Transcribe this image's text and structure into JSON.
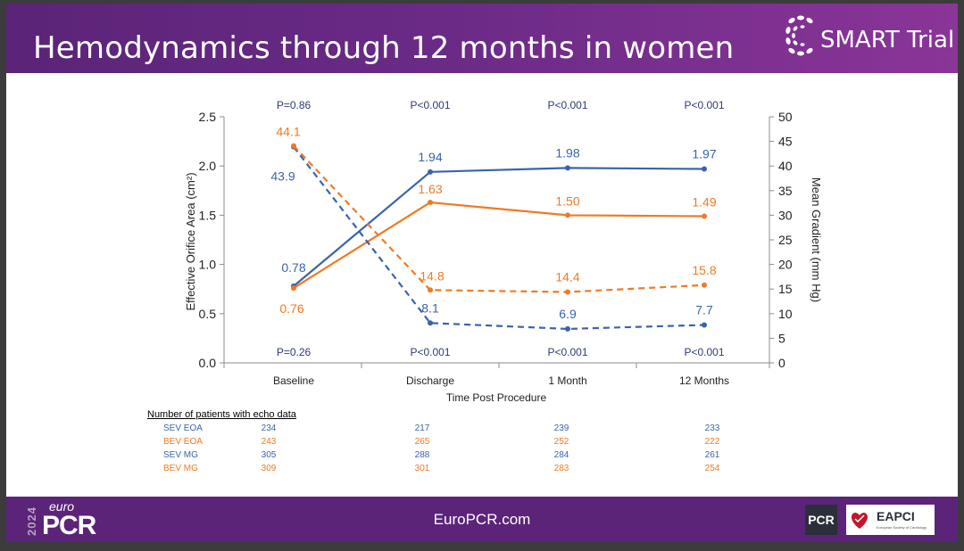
{
  "slide": {
    "title": "Hemodynamics through 12 months in women",
    "brand": "SMART Trial",
    "footer_url": "EuroPCR.com",
    "footer_year": "2024",
    "footer_euro": "euro",
    "footer_pcr": "PCR",
    "pcr_badge": "PCR",
    "eapci_label": "EAPCI",
    "eapci_sub": "European Society of Cardiology"
  },
  "chart_data": {
    "type": "line",
    "title": "",
    "xlabel": "Time Post Procedure",
    "ylabel": "Effective Orifice Area (cm²)",
    "y2label": "Mean Gradient (mm Hg)",
    "categories": [
      "Baseline",
      "Discharge",
      "1 Month",
      "12 Months"
    ],
    "ylim": [
      0,
      2.5
    ],
    "yticks": [
      "0.0",
      "0.5",
      "1.0",
      "1.5",
      "2.0",
      "2.5"
    ],
    "y2lim": [
      0,
      50
    ],
    "y2ticks": [
      "0",
      "5",
      "10",
      "15",
      "20",
      "25",
      "30",
      "35",
      "40",
      "45",
      "50"
    ],
    "grid": false,
    "series": [
      {
        "key": "sev_eoa",
        "axis": "left",
        "style": "solid",
        "color": "#3b63ad",
        "values": [
          0.78,
          1.94,
          1.98,
          1.97
        ],
        "labels": [
          "0.78",
          "1.94",
          "1.98",
          "1.97"
        ]
      },
      {
        "key": "bev_eoa",
        "axis": "left",
        "style": "solid",
        "color": "#f07a22",
        "values": [
          0.76,
          1.63,
          1.5,
          1.49
        ],
        "labels": [
          "0.76",
          "1.63",
          "1.50",
          "1.49"
        ]
      },
      {
        "key": "sev_mg",
        "axis": "right",
        "style": "dashed",
        "color": "#3b63ad",
        "values": [
          43.9,
          8.1,
          6.9,
          7.7
        ],
        "labels": [
          "43.9",
          "8.1",
          "6.9",
          "7.7"
        ]
      },
      {
        "key": "bev_mg",
        "axis": "right",
        "style": "dashed",
        "color": "#f07a22",
        "values": [
          44.1,
          14.8,
          14.4,
          15.8
        ],
        "labels": [
          "44.1",
          "14.8",
          "14.4",
          "15.8"
        ]
      }
    ],
    "pvalues_top": [
      "P=0.86",
      "P<0.001",
      "P<0.001",
      "P<0.001"
    ],
    "pvalues_bottom": [
      "P=0.26",
      "P<0.001",
      "P<0.001",
      "P<0.001"
    ],
    "pvalue_color": "#2e3b7a"
  },
  "patients_table": {
    "heading": "Number of patients with echo data",
    "rows": [
      {
        "label": "SEV EOA",
        "color": "#3b63ad",
        "values": [
          "234",
          "217",
          "239",
          "233"
        ]
      },
      {
        "label": "BEV EOA",
        "color": "#f07a22",
        "values": [
          "243",
          "265",
          "252",
          "222"
        ]
      },
      {
        "label": "SEV MG",
        "color": "#3b63ad",
        "values": [
          "305",
          "288",
          "284",
          "261"
        ]
      },
      {
        "label": "BEV MG",
        "color": "#f07a22",
        "values": [
          "309",
          "301",
          "283",
          "254"
        ]
      }
    ]
  }
}
